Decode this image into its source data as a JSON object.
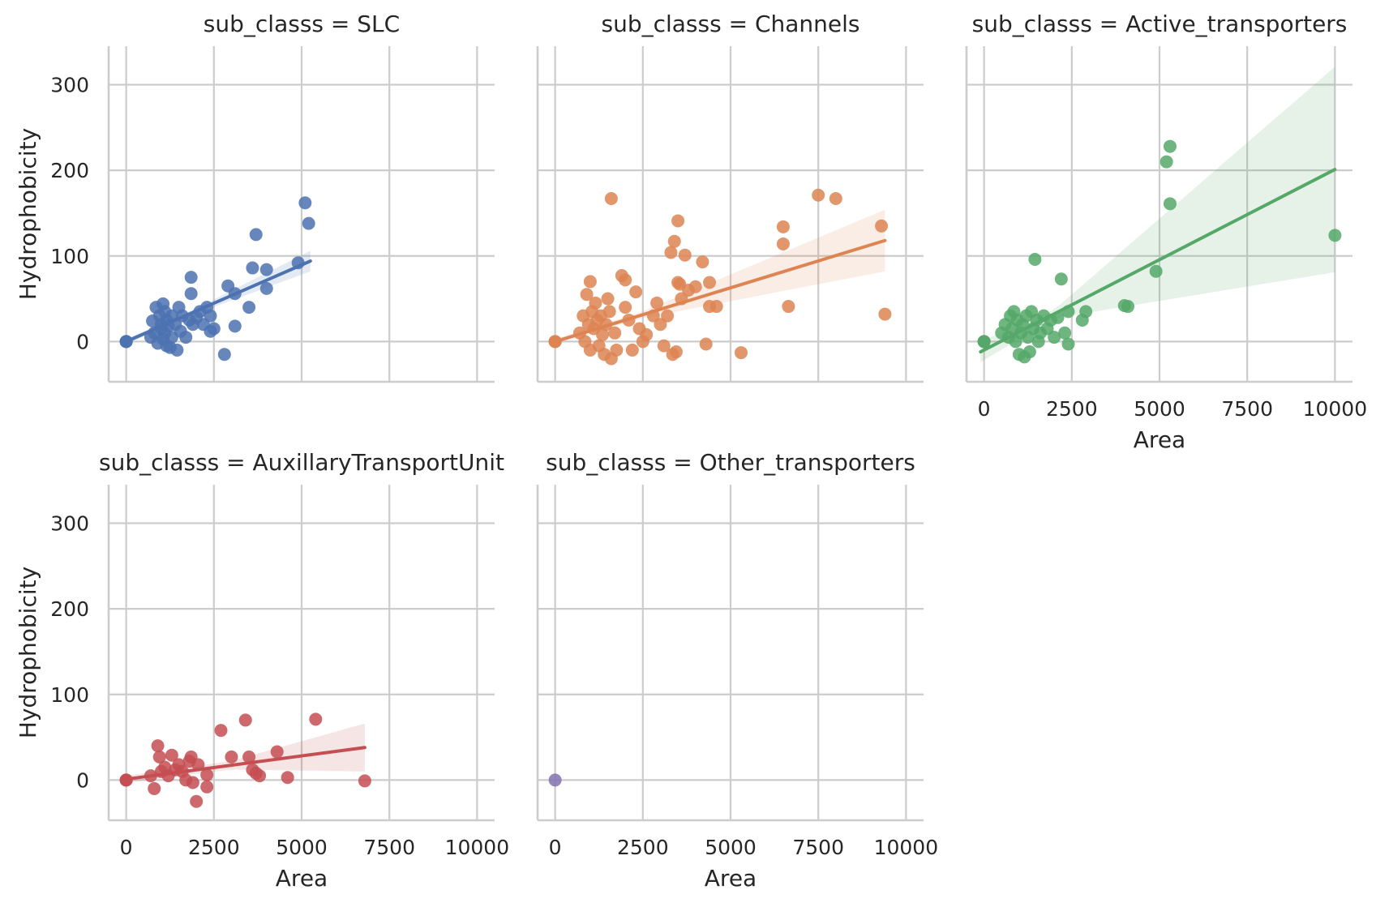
{
  "chart_data": {
    "type": "scatter",
    "facet_variable": "sub_classs",
    "xlabel": "Area",
    "ylabel": "Hydrophobicity",
    "xlim": [
      -500,
      10500
    ],
    "ylim": [
      -47,
      345
    ],
    "x_ticks": [
      0,
      2500,
      5000,
      7500,
      10000
    ],
    "y_ticks": [
      0,
      100,
      200,
      300
    ],
    "x_tick_labels": [
      "0",
      "2500",
      "5000",
      "7500",
      "10000"
    ],
    "y_tick_labels": [
      "0",
      "100",
      "200",
      "300"
    ],
    "grid": true,
    "regression": "linear fit with shaded confidence band",
    "panels": [
      {
        "title": "sub_classs = SLC",
        "color": "#4c72b0",
        "points": [
          [
            0,
            0
          ],
          [
            0,
            0
          ],
          [
            0,
            0
          ],
          [
            0,
            0
          ],
          [
            700,
            5
          ],
          [
            750,
            24
          ],
          [
            800,
            10
          ],
          [
            850,
            40
          ],
          [
            900,
            -2
          ],
          [
            950,
            30
          ],
          [
            1000,
            15
          ],
          [
            1000,
            20
          ],
          [
            1050,
            44
          ],
          [
            1050,
            3
          ],
          [
            1100,
            35
          ],
          [
            1100,
            10
          ],
          [
            1150,
            25
          ],
          [
            1150,
            -5
          ],
          [
            1200,
            18
          ],
          [
            1250,
            -7
          ],
          [
            1300,
            30
          ],
          [
            1300,
            5
          ],
          [
            1400,
            20
          ],
          [
            1450,
            -10
          ],
          [
            1500,
            40
          ],
          [
            1550,
            12
          ],
          [
            1600,
            30
          ],
          [
            1700,
            5
          ],
          [
            1800,
            25
          ],
          [
            1850,
            75
          ],
          [
            1850,
            56
          ],
          [
            1900,
            20
          ],
          [
            2000,
            28
          ],
          [
            2100,
            35
          ],
          [
            2200,
            20
          ],
          [
            2300,
            40
          ],
          [
            2400,
            30
          ],
          [
            2400,
            12
          ],
          [
            2500,
            15
          ],
          [
            2800,
            -15
          ],
          [
            2900,
            65
          ],
          [
            3100,
            56
          ],
          [
            3100,
            18
          ],
          [
            3700,
            125
          ],
          [
            3500,
            40
          ],
          [
            3600,
            86
          ],
          [
            4000,
            84
          ],
          [
            4000,
            62
          ],
          [
            4900,
            92
          ],
          [
            5100,
            162
          ],
          [
            5200,
            138
          ]
        ],
        "fit": [
          [
            0,
            0
          ],
          [
            5250,
            94
          ]
        ],
        "band_halfwidth": [
          [
            0,
            3
          ],
          [
            2000,
            3
          ],
          [
            5250,
            12
          ]
        ]
      },
      {
        "title": "sub_classs = Channels",
        "color": "#dd8452",
        "points": [
          [
            0,
            0
          ],
          [
            0,
            0
          ],
          [
            0,
            0
          ],
          [
            700,
            10
          ],
          [
            800,
            30
          ],
          [
            850,
            0
          ],
          [
            900,
            55
          ],
          [
            950,
            20
          ],
          [
            1000,
            70
          ],
          [
            1000,
            -10
          ],
          [
            1050,
            35
          ],
          [
            1100,
            15
          ],
          [
            1150,
            45
          ],
          [
            1200,
            25
          ],
          [
            1250,
            -5
          ],
          [
            1300,
            30
          ],
          [
            1350,
            8
          ],
          [
            1400,
            -15
          ],
          [
            1450,
            20
          ],
          [
            1500,
            50
          ],
          [
            1550,
            35
          ],
          [
            1600,
            167
          ],
          [
            1600,
            -20
          ],
          [
            1700,
            10
          ],
          [
            1750,
            -10
          ],
          [
            1900,
            77
          ],
          [
            2000,
            72
          ],
          [
            2000,
            40
          ],
          [
            2100,
            25
          ],
          [
            2200,
            -10
          ],
          [
            2300,
            58
          ],
          [
            2400,
            15
          ],
          [
            2500,
            0
          ],
          [
            2600,
            8
          ],
          [
            2800,
            30
          ],
          [
            2900,
            45
          ],
          [
            3000,
            20
          ],
          [
            3100,
            -5
          ],
          [
            3200,
            30
          ],
          [
            3300,
            104
          ],
          [
            3350,
            -15
          ],
          [
            3400,
            117
          ],
          [
            3450,
            -12
          ],
          [
            3500,
            69
          ],
          [
            3500,
            141
          ],
          [
            3550,
            67
          ],
          [
            3600,
            50
          ],
          [
            3700,
            101
          ],
          [
            3800,
            60
          ],
          [
            4000,
            64
          ],
          [
            4200,
            93
          ],
          [
            4300,
            -3
          ],
          [
            4400,
            69
          ],
          [
            4400,
            41
          ],
          [
            4600,
            41
          ],
          [
            5300,
            -13
          ],
          [
            6500,
            134
          ],
          [
            6500,
            114
          ],
          [
            6650,
            41
          ],
          [
            7500,
            171
          ],
          [
            8000,
            167
          ],
          [
            9300,
            135
          ],
          [
            9400,
            32
          ]
        ],
        "fit": [
          [
            0,
            0
          ],
          [
            9400,
            118
          ]
        ],
        "band_halfwidth": [
          [
            0,
            3
          ],
          [
            2500,
            4
          ],
          [
            9400,
            36
          ]
        ]
      },
      {
        "title": "sub_classs = Active_transporters",
        "color": "#55a868",
        "points": [
          [
            0,
            0
          ],
          [
            0,
            0
          ],
          [
            0,
            0
          ],
          [
            500,
            10
          ],
          [
            600,
            20
          ],
          [
            700,
            5
          ],
          [
            750,
            30
          ],
          [
            800,
            15
          ],
          [
            850,
            35
          ],
          [
            900,
            0
          ],
          [
            950,
            25
          ],
          [
            1000,
            -15
          ],
          [
            1050,
            10
          ],
          [
            1100,
            20
          ],
          [
            1150,
            -18
          ],
          [
            1200,
            30
          ],
          [
            1250,
            5
          ],
          [
            1300,
            -12
          ],
          [
            1350,
            35
          ],
          [
            1400,
            15
          ],
          [
            1450,
            96
          ],
          [
            1500,
            25
          ],
          [
            1550,
            0
          ],
          [
            1600,
            10
          ],
          [
            1700,
            30
          ],
          [
            1800,
            15
          ],
          [
            1900,
            25
          ],
          [
            2000,
            5
          ],
          [
            2100,
            28
          ],
          [
            2200,
            73
          ],
          [
            2300,
            10
          ],
          [
            2400,
            -3
          ],
          [
            2400,
            35
          ],
          [
            2800,
            25
          ],
          [
            2900,
            35
          ],
          [
            4000,
            42
          ],
          [
            4100,
            41
          ],
          [
            4900,
            82
          ],
          [
            5200,
            210
          ],
          [
            5300,
            228
          ],
          [
            5300,
            161
          ],
          [
            10000,
            124
          ]
        ],
        "fit": [
          [
            -100,
            -12
          ],
          [
            10000,
            201
          ]
        ],
        "band_halfwidth": [
          [
            -100,
            12
          ],
          [
            2000,
            5
          ],
          [
            10000,
            120
          ]
        ]
      },
      {
        "title": "sub_classs = AuxillaryTransportUnit",
        "color": "#c44e52",
        "points": [
          [
            0,
            0
          ],
          [
            0,
            0
          ],
          [
            0,
            0
          ],
          [
            700,
            5
          ],
          [
            800,
            -10
          ],
          [
            900,
            40
          ],
          [
            950,
            27
          ],
          [
            1000,
            10
          ],
          [
            1100,
            15
          ],
          [
            1200,
            5
          ],
          [
            1300,
            29
          ],
          [
            1400,
            12
          ],
          [
            1500,
            18
          ],
          [
            1600,
            10
          ],
          [
            1700,
            0
          ],
          [
            1800,
            22
          ],
          [
            1850,
            27
          ],
          [
            1900,
            -3
          ],
          [
            2000,
            -25
          ],
          [
            2050,
            18
          ],
          [
            2300,
            -8
          ],
          [
            2300,
            6
          ],
          [
            2700,
            58
          ],
          [
            3000,
            27
          ],
          [
            3400,
            70
          ],
          [
            3500,
            27
          ],
          [
            3600,
            12
          ],
          [
            3700,
            8
          ],
          [
            3800,
            5
          ],
          [
            4300,
            33
          ],
          [
            4600,
            3
          ],
          [
            5400,
            71
          ],
          [
            6800,
            -1
          ]
        ],
        "fit": [
          [
            0,
            1
          ],
          [
            6800,
            38
          ]
        ],
        "band_halfwidth": [
          [
            0,
            4
          ],
          [
            3000,
            5
          ],
          [
            6800,
            28
          ]
        ]
      },
      {
        "title": "sub_classs = Other_transporters",
        "color": "#8172b3",
        "points": [
          [
            0,
            0
          ]
        ],
        "fit": null,
        "band_halfwidth": null
      }
    ]
  }
}
